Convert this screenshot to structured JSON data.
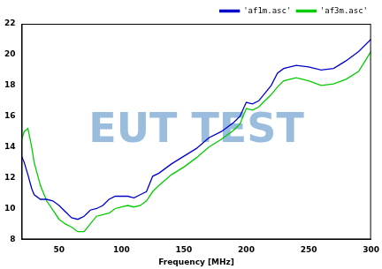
{
  "chart_data": {
    "type": "line",
    "x_label": "Frequency [MHz]",
    "annotations": [
      "EUT TEST"
    ],
    "x": [
      20,
      22,
      25,
      28,
      30,
      35,
      40,
      45,
      50,
      55,
      60,
      65,
      70,
      75,
      80,
      85,
      90,
      95,
      100,
      105,
      110,
      115,
      120,
      125,
      130,
      140,
      150,
      160,
      170,
      180,
      190,
      195,
      200,
      205,
      210,
      215,
      220,
      225,
      230,
      240,
      250,
      260,
      270,
      280,
      290,
      300
    ],
    "series": [
      {
        "name": "'af1m.asc'",
        "color": "#0000cc",
        "values": [
          13.4,
          13.0,
          12.2,
          11.3,
          10.9,
          10.6,
          10.6,
          10.5,
          10.2,
          9.8,
          9.4,
          9.3,
          9.5,
          9.9,
          10.0,
          10.2,
          10.6,
          10.8,
          10.8,
          10.8,
          10.7,
          10.9,
          11.1,
          12.1,
          12.3,
          12.9,
          13.4,
          13.9,
          14.6,
          15.0,
          15.6,
          16.0,
          16.9,
          16.8,
          17.0,
          17.5,
          18.0,
          18.8,
          19.1,
          19.3,
          19.2,
          19.0,
          19.1,
          19.6,
          20.2,
          21.0
        ]
      },
      {
        "name": "'af3m.asc'",
        "color": "#00cc00",
        "values": [
          14.5,
          15.0,
          15.2,
          14.0,
          13.0,
          11.5,
          10.5,
          9.9,
          9.3,
          9.0,
          8.8,
          8.5,
          8.5,
          9.0,
          9.5,
          9.6,
          9.7,
          10.0,
          10.1,
          10.2,
          10.1,
          10.2,
          10.5,
          11.1,
          11.5,
          12.2,
          12.7,
          13.3,
          14.0,
          14.5,
          15.1,
          15.5,
          16.5,
          16.4,
          16.6,
          17.0,
          17.4,
          17.9,
          18.3,
          18.5,
          18.3,
          18.0,
          18.1,
          18.4,
          18.9,
          20.2
        ]
      }
    ],
    "xlim": [
      20,
      300
    ],
    "xticks": [
      50,
      100,
      150,
      200,
      250,
      300
    ],
    "ylim": [
      8,
      22
    ],
    "yticks": [
      8,
      10,
      12,
      14,
      16,
      18,
      20,
      22
    ],
    "grid": false,
    "legend": "upper right"
  }
}
